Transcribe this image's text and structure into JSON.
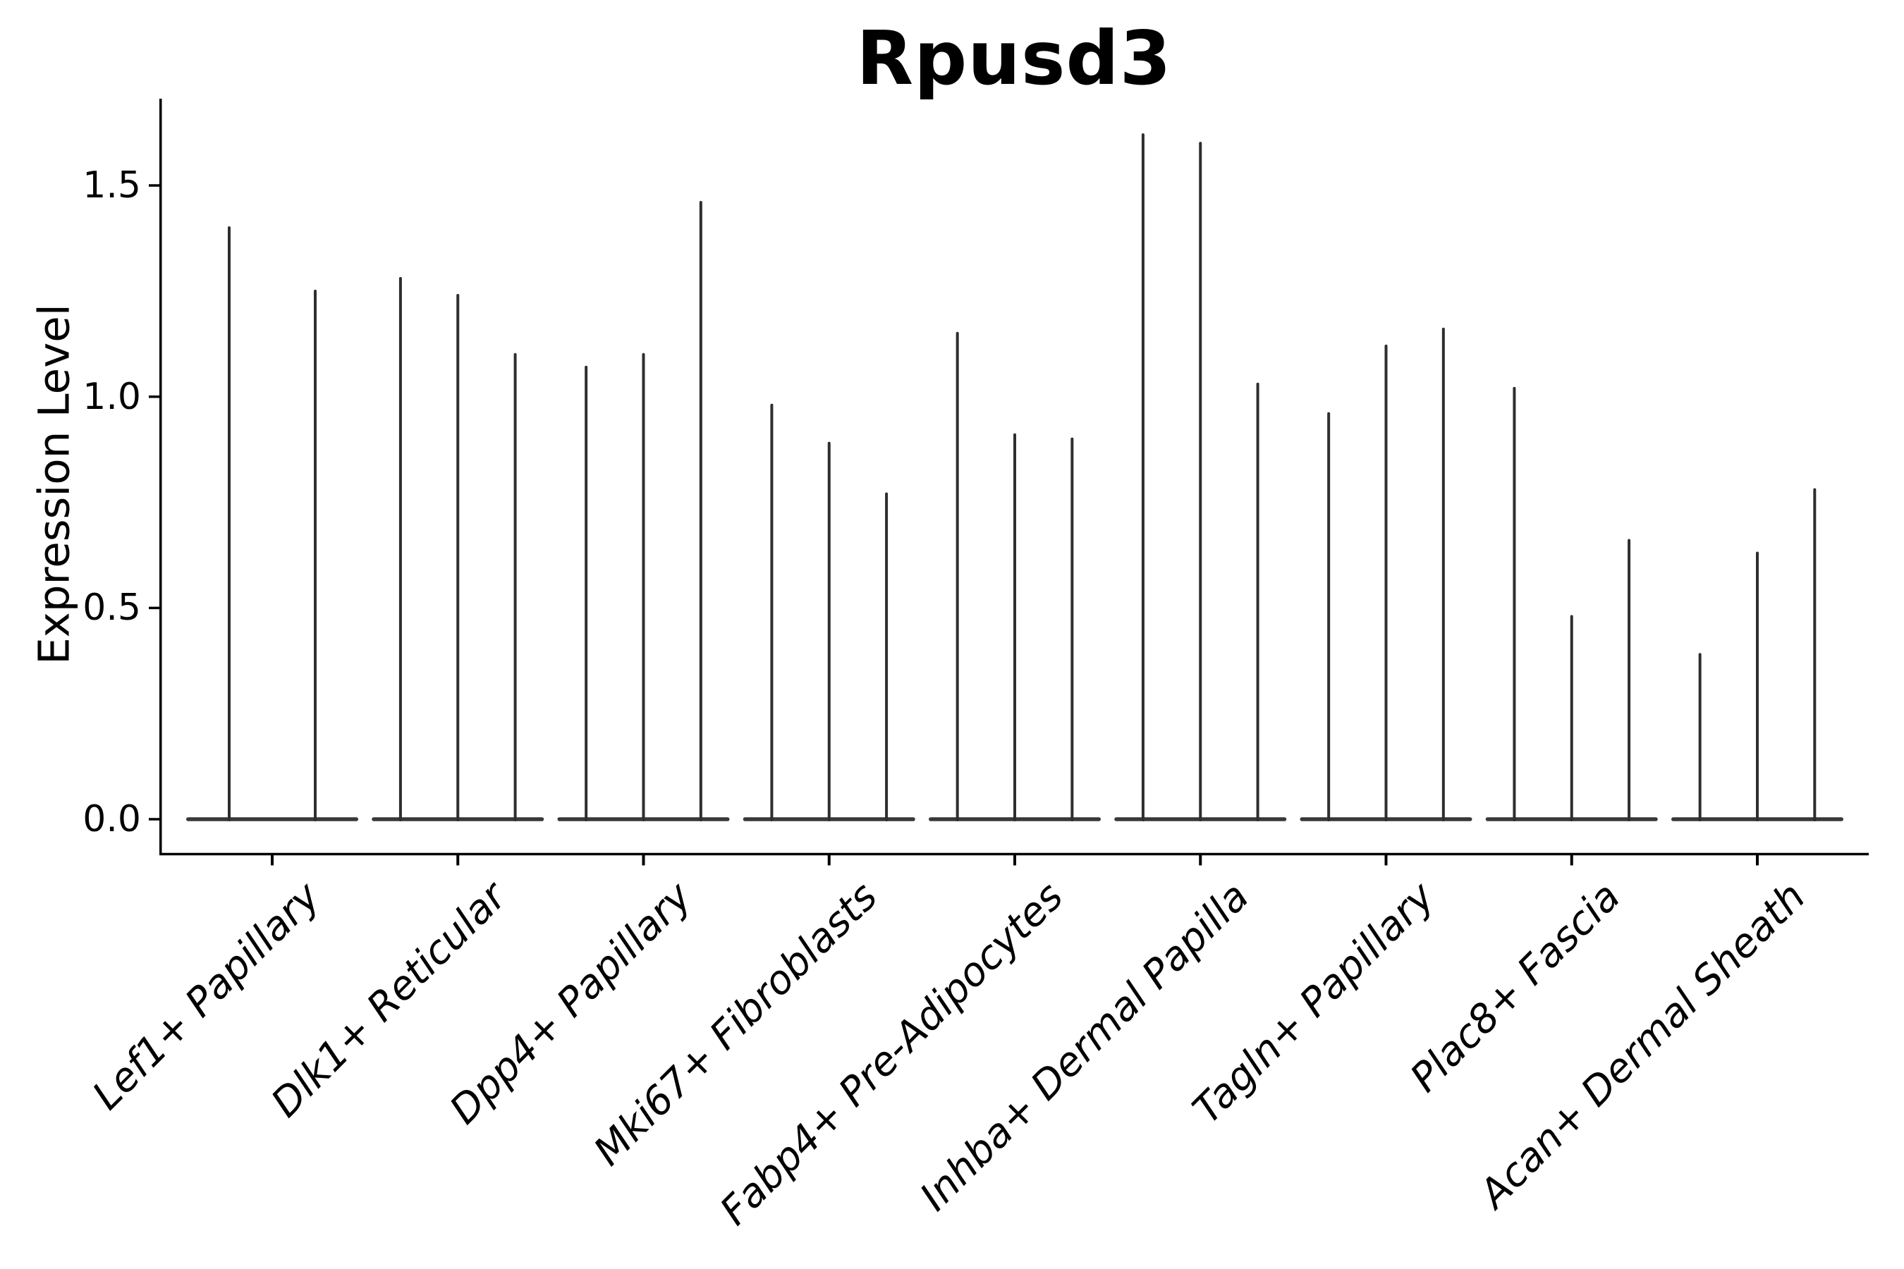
{
  "chart_data": {
    "type": "violin",
    "title": "Rpusd3",
    "ylabel": "Expression Level",
    "xlabel": "",
    "ylim": [
      -0.08,
      1.71
    ],
    "yticks": [
      0.0,
      0.5,
      1.0,
      1.5
    ],
    "ytick_labels": [
      "0.0",
      "0.5",
      "1.0",
      "1.5"
    ],
    "grid": false,
    "legend": null,
    "violin_shape": "near-zero density with thin spike to maximum",
    "categories": [
      "Lef1+ Papillary",
      "Dlk1+ Reticular",
      "Dpp4+ Papillary",
      "Mki67+ Fibroblasts",
      "Fabp4+ Pre-Adipocytes",
      "Inhba+ Dermal Papilla",
      "Tagln+ Papillary",
      "Plac8+ Fascia",
      "Acan+ Dermal Sheath"
    ],
    "violins": [
      {
        "category": "Lef1+ Papillary",
        "maxima": [
          1.4,
          1.25
        ]
      },
      {
        "category": "Dlk1+ Reticular",
        "maxima": [
          1.28,
          1.24,
          1.1
        ]
      },
      {
        "category": "Dpp4+ Papillary",
        "maxima": [
          1.07,
          1.1,
          1.46
        ]
      },
      {
        "category": "Mki67+ Fibroblasts",
        "maxima": [
          0.98,
          0.89,
          0.77
        ]
      },
      {
        "category": "Fabp4+ Pre-Adipocytes",
        "maxima": [
          1.15,
          0.91,
          0.9
        ]
      },
      {
        "category": "Inhba+ Dermal Papilla",
        "maxima": [
          1.62,
          1.6,
          1.03
        ]
      },
      {
        "category": "Tagln+ Papillary",
        "maxima": [
          0.96,
          1.12,
          1.16
        ]
      },
      {
        "category": "Plac8+ Fascia",
        "maxima": [
          1.02,
          0.48,
          0.66
        ]
      },
      {
        "category": "Acan+ Dermal Sheath",
        "maxima": [
          0.39,
          0.63,
          0.78
        ]
      }
    ],
    "colors": {
      "violin": "#2e2e2e",
      "violin_base": "#383838",
      "axis": "#000000",
      "text": "#000000",
      "background": "#ffffff"
    }
  }
}
